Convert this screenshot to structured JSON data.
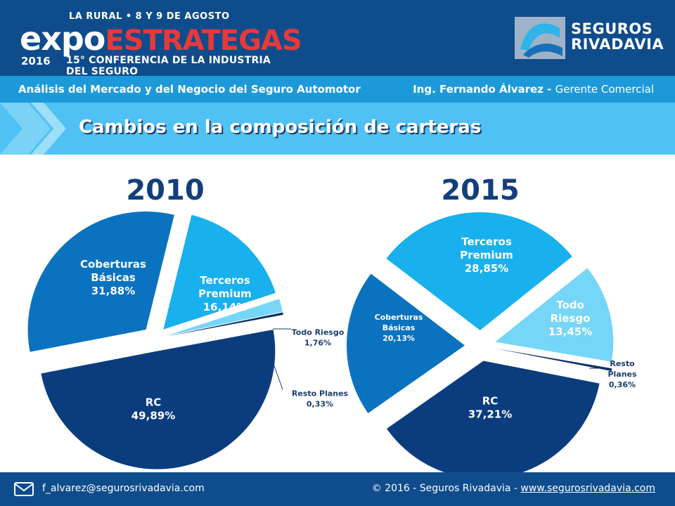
{
  "header": {
    "event_tagline": "LA RURAL • 8 Y 9 DE AGOSTO",
    "event_name_a": "expo",
    "event_name_b": "ESTRATEGAS",
    "event_year": "2016",
    "event_subtitle": "15° CONFERENCIA DE LA INDUSTRIA DEL SEGURO",
    "company_line1": "SEGUROS",
    "company_line2": "RIVADAVIA"
  },
  "subheader": {
    "presentation": "Análisis del Mercado y del Negocio del Seguro Automotor",
    "speaker": "Ing. Fernando Álvarez - ",
    "role": "Gerente Comercial"
  },
  "slide_title": "Cambios en la composición de carteras",
  "colors": {
    "header_bg": "#0f4c8c",
    "rc": "#0b3d7e",
    "coberturas_basicas": "#0b72c0",
    "terceros_premium": "#19b0ee",
    "todo_riesgo": "#76d6f7",
    "resto_planes": "#0a2f63"
  },
  "chart_data": [
    {
      "type": "pie",
      "title": "2010",
      "slices": [
        {
          "label_line1": "RC",
          "label_line2": "",
          "value_text": "49,89%",
          "value": 49.89
        },
        {
          "label_line1": "Coberturas",
          "label_line2": "Básicas",
          "value_text": "31,88%",
          "value": 31.88
        },
        {
          "label_line1": "Terceros",
          "label_line2": "Premium",
          "value_text": "16,14%",
          "value": 16.14
        },
        {
          "label_line1": "Todo Riesgo",
          "label_line2": "",
          "value_text": "1,76%",
          "value": 1.76
        },
        {
          "label_line1": "Resto Planes",
          "label_line2": "",
          "value_text": "0,33%",
          "value": 0.33
        }
      ]
    },
    {
      "type": "pie",
      "title": "2015",
      "slices": [
        {
          "label_line1": "RC",
          "label_line2": "",
          "value_text": "37,21%",
          "value": 37.21
        },
        {
          "label_line1": "Coberturas",
          "label_line2": "Básicas",
          "value_text": "20,13%",
          "value": 20.13
        },
        {
          "label_line1": "Terceros",
          "label_line2": "Premium",
          "value_text": "28,85%",
          "value": 28.85
        },
        {
          "label_line1": "Todo",
          "label_line2": "Riesgo",
          "value_text": "13,45%",
          "value": 13.45
        },
        {
          "label_line1": "Resto",
          "label_line2": "Planes",
          "value_text": "0,36%",
          "value": 0.36
        }
      ]
    }
  ],
  "footer": {
    "email": "f_alvarez@segurosrivadavia.com",
    "copyright": "© 2016 - Seguros Rivadavia - ",
    "website": "www.segurosrivadavia.com"
  }
}
